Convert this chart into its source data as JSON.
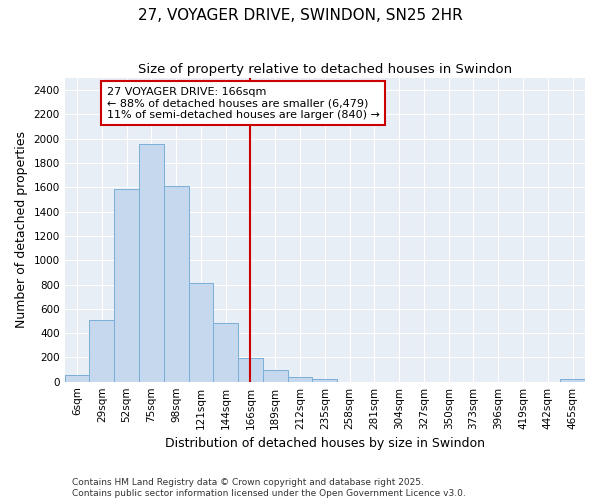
{
  "title": "27, VOYAGER DRIVE, SWINDON, SN25 2HR",
  "subtitle": "Size of property relative to detached houses in Swindon",
  "xlabel": "Distribution of detached houses by size in Swindon",
  "ylabel": "Number of detached properties",
  "footer": "Contains HM Land Registry data © Crown copyright and database right 2025.\nContains public sector information licensed under the Open Government Licence v3.0.",
  "bar_labels": [
    "6sqm",
    "29sqm",
    "52sqm",
    "75sqm",
    "98sqm",
    "121sqm",
    "144sqm",
    "166sqm",
    "189sqm",
    "212sqm",
    "235sqm",
    "258sqm",
    "281sqm",
    "304sqm",
    "327sqm",
    "350sqm",
    "373sqm",
    "396sqm",
    "419sqm",
    "442sqm",
    "465sqm"
  ],
  "bar_values": [
    55,
    510,
    1590,
    1960,
    1610,
    810,
    480,
    195,
    95,
    35,
    20,
    0,
    0,
    0,
    0,
    0,
    0,
    0,
    0,
    0,
    20
  ],
  "bar_color": "#c5d8ee",
  "bar_edgecolor": "#7aaed6",
  "vline_x_index": 7,
  "vline_color": "#cc0000",
  "annotation_text": "27 VOYAGER DRIVE: 166sqm\n← 88% of detached houses are smaller (6,479)\n11% of semi-detached houses are larger (840) →",
  "annotation_box_facecolor": "#ffffff",
  "annotation_box_edgecolor": "#cc0000",
  "ylim": [
    0,
    2500
  ],
  "yticks": [
    0,
    200,
    400,
    600,
    800,
    1000,
    1200,
    1400,
    1600,
    1800,
    2000,
    2200,
    2400
  ],
  "plot_bg_color": "#e8eef5",
  "fig_bg_color": "#ffffff",
  "grid_color": "#ffffff",
  "title_fontsize": 11,
  "subtitle_fontsize": 9.5,
  "axis_label_fontsize": 9,
  "tick_fontsize": 7.5,
  "annotation_fontsize": 8,
  "footer_fontsize": 6.5
}
